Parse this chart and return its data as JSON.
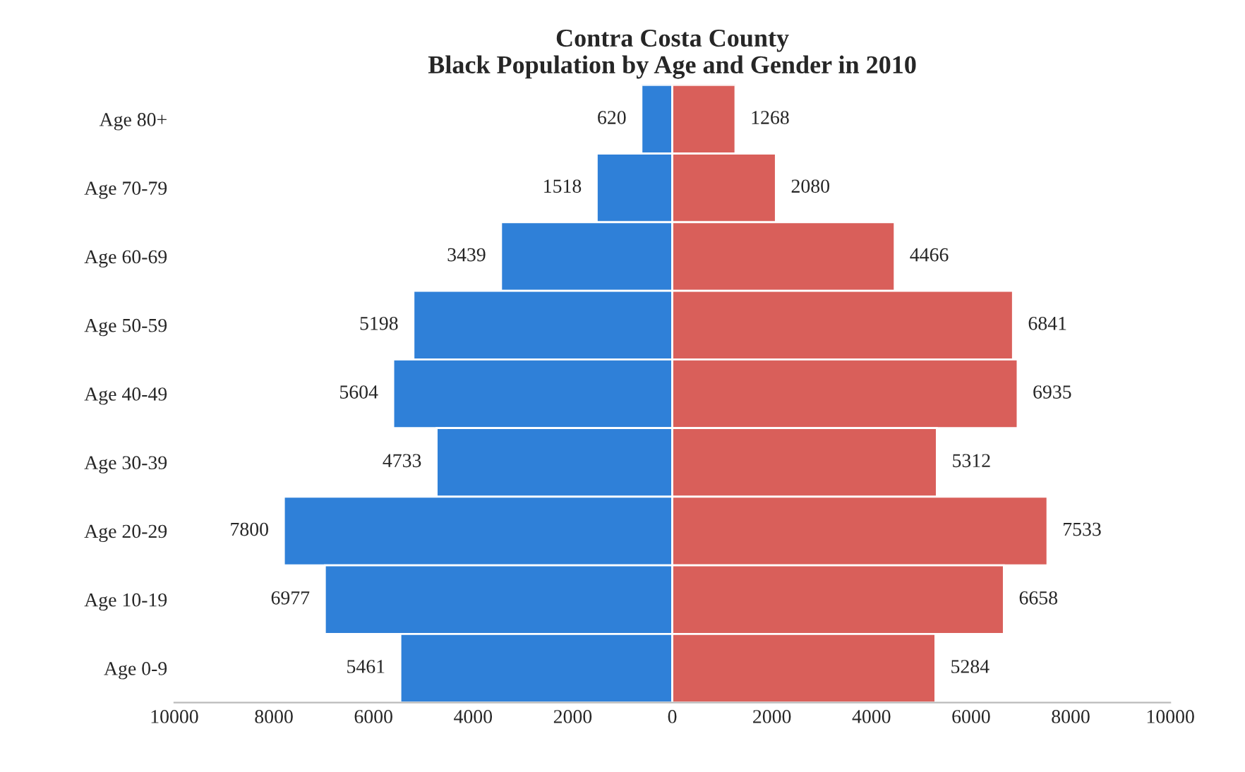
{
  "chart_data": {
    "type": "bar",
    "orientation": "horizontal",
    "title": "Contra Costa County\nBlack Population by Age and Gender in 2010",
    "categories": [
      "Age 80+",
      "Age 70-79",
      "Age 60-69",
      "Age 50-59",
      "Age 40-49",
      "Age 30-39",
      "Age 20-29",
      "Age 10-19",
      "Age 0-9"
    ],
    "series": [
      {
        "color": "#2f80d8",
        "values": [
          620,
          1518,
          3439,
          5198,
          5604,
          4733,
          7800,
          6977,
          5461
        ],
        "base": [
          -620,
          -1518,
          -3439,
          -5198,
          -5604,
          -4733,
          -7800,
          -6977,
          -5461
        ],
        "value_labels": [
          "620",
          "1518",
          "3439",
          "5198",
          "5604",
          "4733",
          "7800",
          "6977",
          "5461"
        ]
      },
      {
        "color": "#d95f5a",
        "values": [
          1268,
          2080,
          4466,
          6841,
          6935,
          5312,
          7533,
          6658,
          5284
        ],
        "value_labels": [
          "1268",
          "2080",
          "4466",
          "6841",
          "6935",
          "5312",
          "7533",
          "6658",
          "5284"
        ]
      }
    ],
    "xlim": [
      -10000,
      10000
    ],
    "xticks": [
      {
        "value": -10000,
        "label": "10000"
      },
      {
        "value": -8000,
        "label": "8000"
      },
      {
        "value": -6000,
        "label": "6000"
      },
      {
        "value": -4000,
        "label": "4000"
      },
      {
        "value": -2000,
        "label": "2000"
      },
      0,
      2000,
      4000,
      6000,
      8000,
      10000
    ],
    "grid": false,
    "legend": false
  }
}
